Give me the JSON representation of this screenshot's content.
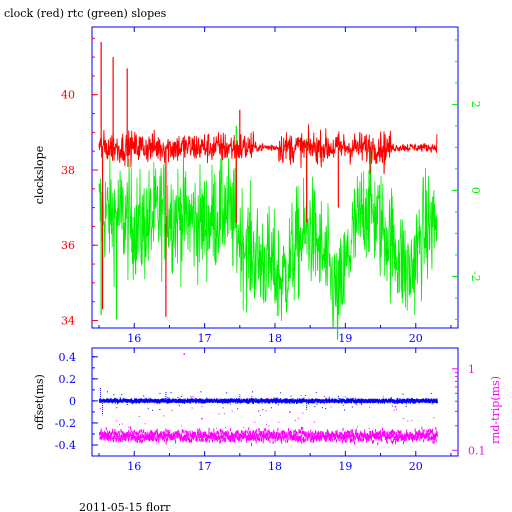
{
  "title": "clock (red) rtc (green) slopes",
  "footer": "2011-05-15 florr",
  "colors": {
    "red": "#ff0000",
    "green": "#00ee00",
    "blue": "#0000ff",
    "magenta": "#ff00ff",
    "axis": "#0000ff",
    "black": "#000000"
  },
  "chart_data": [
    {
      "type": "line",
      "panel": "top",
      "xlabel": "",
      "ylabel": "clockslope",
      "xlim": [
        15.4,
        20.6
      ],
      "ylim_left": [
        33.8,
        41.8
      ],
      "ylim_right": [
        -3.2,
        3.8
      ],
      "x_ticks": [
        "16",
        "17",
        "18",
        "19",
        "20"
      ],
      "y_ticks_left": [
        "34",
        "36",
        "38",
        "40"
      ],
      "y_ticks_right": [
        "-2",
        "0",
        "2"
      ],
      "series": [
        {
          "key": "clock",
          "axis": "left",
          "color": "red",
          "x_range": [
            15.5,
            20.3
          ],
          "typical_value": 38.6,
          "spikes": [
            {
              "x": 15.53,
              "y": 41.4
            },
            {
              "x": 15.55,
              "y": 34.3
            },
            {
              "x": 15.7,
              "y": 41.0
            },
            {
              "x": 15.9,
              "y": 40.7
            },
            {
              "x": 16.45,
              "y": 34.1
            },
            {
              "x": 17.45,
              "y": 36.6
            },
            {
              "x": 17.5,
              "y": 39.6
            },
            {
              "x": 18.45,
              "y": 36.6
            },
            {
              "x": 18.9,
              "y": 37.0
            },
            {
              "x": 19.35,
              "y": 37.9
            },
            {
              "x": 19.55,
              "y": 37.9
            }
          ]
        },
        {
          "key": "rtc",
          "axis": "right",
          "color": "green",
          "x_range": [
            15.5,
            20.3
          ],
          "typical_value": -0.6,
          "segments": [
            {
              "x": 15.5,
              "y": -0.5
            },
            {
              "x": 15.8,
              "y": -0.6
            },
            {
              "x": 16.1,
              "y": -0.9
            },
            {
              "x": 16.4,
              "y": -0.5
            },
            {
              "x": 16.7,
              "y": -0.6
            },
            {
              "x": 17.0,
              "y": -0.8
            },
            {
              "x": 17.3,
              "y": -0.4
            },
            {
              "x": 17.55,
              "y": -1.2
            },
            {
              "x": 17.7,
              "y": -1.5
            },
            {
              "x": 17.9,
              "y": -1.7
            },
            {
              "x": 18.1,
              "y": -2.1
            },
            {
              "x": 18.3,
              "y": -1.3
            },
            {
              "x": 18.5,
              "y": -0.9
            },
            {
              "x": 18.7,
              "y": -1.6
            },
            {
              "x": 18.9,
              "y": -2.6
            },
            {
              "x": 19.1,
              "y": -1.1
            },
            {
              "x": 19.3,
              "y": -0.3
            },
            {
              "x": 19.5,
              "y": -0.8
            },
            {
              "x": 19.7,
              "y": -1.3
            },
            {
              "x": 19.9,
              "y": -2.0
            },
            {
              "x": 20.1,
              "y": -1.0
            },
            {
              "x": 20.3,
              "y": -0.7
            }
          ],
          "spikes": [
            {
              "x": 15.53,
              "y": -2.9
            },
            {
              "x": 15.75,
              "y": -3.0
            },
            {
              "x": 17.45,
              "y": 1.5
            },
            {
              "x": 18.45,
              "y": 1.2
            },
            {
              "x": 18.9,
              "y": -2.9
            },
            {
              "x": 19.8,
              "y": -2.3
            }
          ]
        }
      ]
    },
    {
      "type": "scatter",
      "panel": "bottom",
      "xlabel": "",
      "ylabel": "offset(ms)",
      "ylabel_right": "rnd-trip(ms)",
      "xlim": [
        15.4,
        20.6
      ],
      "ylim_left": [
        -0.5,
        0.48
      ],
      "ylim_right_log": [
        0.085,
        1.8
      ],
      "x_ticks": [
        "16",
        "17",
        "18",
        "19",
        "20"
      ],
      "y_ticks_left": [
        "0.4",
        "0.2",
        "0",
        "-0.2",
        "-0.4"
      ],
      "y_ticks_right": [
        "1",
        "0.1"
      ],
      "series": [
        {
          "key": "offset",
          "axis": "left",
          "color": "blue",
          "x_range": [
            15.5,
            20.3
          ],
          "typical_value": 0.0,
          "outliers": [
            {
              "x": 15.52,
              "y": 0.12
            },
            {
              "x": 15.55,
              "y": -0.13
            },
            {
              "x": 16.45,
              "y": 0.09
            },
            {
              "x": 17.5,
              "y": 0.06
            },
            {
              "x": 18.45,
              "y": -0.08
            },
            {
              "x": 18.9,
              "y": 0.05
            }
          ]
        },
        {
          "key": "rndtrip",
          "axis": "right",
          "color": "magenta",
          "x_range": [
            15.5,
            20.3
          ],
          "typical_value": 0.15,
          "outliers": [
            {
              "x": 16.7,
              "y": 1.55
            },
            {
              "x": 18.2,
              "y": 0.3
            },
            {
              "x": 19.7,
              "y": 0.35
            },
            {
              "x": 16.95,
              "y": 0.25
            },
            {
              "x": 18.7,
              "y": 0.4
            }
          ]
        }
      ]
    }
  ]
}
